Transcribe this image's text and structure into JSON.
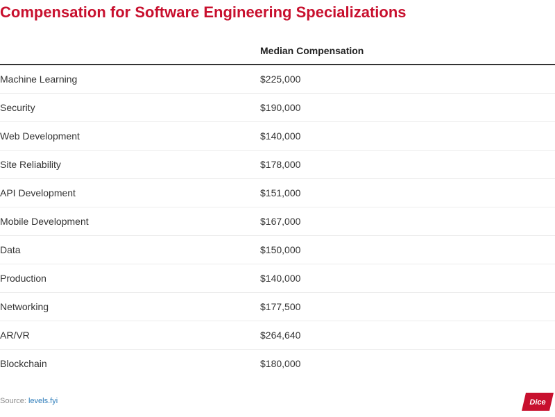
{
  "title": "Compensation for Software Engineering Specializations",
  "chart_data": {
    "type": "table",
    "title": "Compensation for Software Engineering Specializations",
    "columns": [
      "",
      "Median Compensation"
    ],
    "rows": [
      {
        "specialization": "Machine Learning",
        "median": "$225,000"
      },
      {
        "specialization": "Security",
        "median": "$190,000"
      },
      {
        "specialization": "Web Development",
        "median": "$140,000"
      },
      {
        "specialization": "Site Reliability",
        "median": "$178,000"
      },
      {
        "specialization": "API Development",
        "median": "$151,000"
      },
      {
        "specialization": "Mobile Development",
        "median": "$167,000"
      },
      {
        "specialization": "Data",
        "median": "$150,000"
      },
      {
        "specialization": "Production",
        "median": "$140,000"
      },
      {
        "specialization": "Networking",
        "median": "$177,500"
      },
      {
        "specialization": "AR/VR",
        "median": "$264,640"
      },
      {
        "specialization": "Blockchain",
        "median": "$180,000"
      }
    ]
  },
  "source": {
    "label": "Source:",
    "link_text": "levels.fyi"
  },
  "logo": {
    "text": "Dice",
    "color": "#c8102e"
  },
  "colors": {
    "title": "#c8102e",
    "link": "#2b7bb9"
  }
}
